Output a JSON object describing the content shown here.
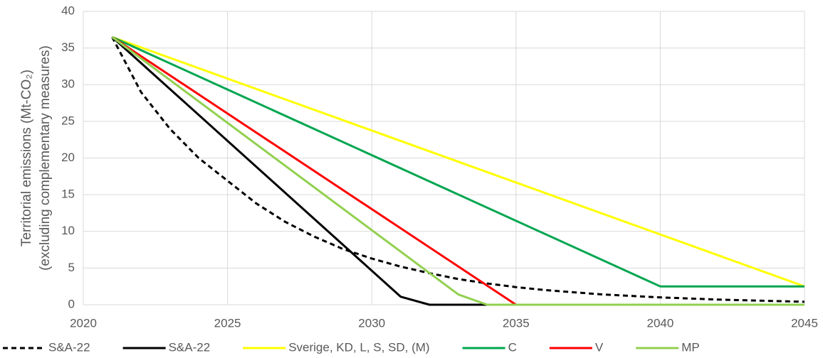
{
  "chart_data": {
    "type": "line",
    "ylabel": [
      "Territorial emissions  (Mt-CO₂)",
      "(excluding complementary measures)"
    ],
    "xlim": [
      2020,
      2045
    ],
    "xticks": [
      2020,
      2025,
      2030,
      2035,
      2040,
      2045
    ],
    "ylim": [
      0,
      40
    ],
    "yticks": [
      0,
      5,
      10,
      15,
      20,
      25,
      30,
      35,
      40
    ],
    "grid": true,
    "legend": "bottom",
    "series": [
      {
        "name": "S&A-22",
        "color": "#000000",
        "dashed": true,
        "x": [
          2021,
          2022,
          2023,
          2024,
          2025,
          2026,
          2027,
          2028,
          2029,
          2030,
          2031,
          2032,
          2033,
          2034,
          2035,
          2036,
          2037,
          2038,
          2039,
          2040,
          2041,
          2042,
          2043,
          2044,
          2045
        ],
        "values": [
          36.5,
          29,
          24,
          20,
          16.9,
          13.8,
          11.3,
          9.3,
          7.6,
          6.3,
          5.2,
          4.3,
          3.5,
          2.9,
          2.4,
          2.0,
          1.7,
          1.4,
          1.2,
          1.0,
          0.85,
          0.7,
          0.6,
          0.5,
          0.4
        ]
      },
      {
        "name": "S&A-22",
        "color": "#000000",
        "x": [
          2021,
          2031,
          2032,
          2045
        ],
        "values": [
          36.5,
          1.1,
          0,
          0
        ]
      },
      {
        "name": "Sverige, KD, L, S, SD, (M)",
        "color": "#ffff00",
        "x": [
          2021,
          2045
        ],
        "values": [
          36.5,
          2.5
        ]
      },
      {
        "name": "C",
        "color": "#00a650",
        "x": [
          2021,
          2040,
          2045
        ],
        "values": [
          36.5,
          2.5,
          2.5
        ]
      },
      {
        "name": "V",
        "color": "#ff0000",
        "x": [
          2021,
          2035,
          2045
        ],
        "values": [
          36.5,
          0,
          0
        ]
      },
      {
        "name": "MP",
        "color": "#92d050",
        "x": [
          2021,
          2033,
          2034,
          2045
        ],
        "values": [
          36.5,
          1.4,
          0,
          0
        ]
      }
    ]
  }
}
